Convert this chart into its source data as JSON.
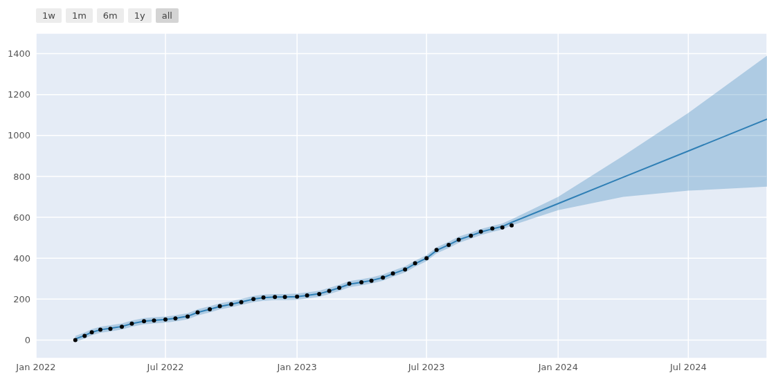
{
  "chart_data": {
    "type": "line",
    "annotations": [
      "1w",
      "1m",
      "6m",
      "1y",
      "all"
    ],
    "xlim": [
      "2022-01-01",
      "2024-10-19"
    ],
    "xticks": [
      {
        "value": "2022-01-01",
        "label": "Jan 2022"
      },
      {
        "value": "2022-07-01",
        "label": "Jul 2022"
      },
      {
        "value": "2023-01-01",
        "label": "Jan 2023"
      },
      {
        "value": "2023-07-01",
        "label": "Jul 2023"
      },
      {
        "value": "2024-01-01",
        "label": "Jan 2024"
      },
      {
        "value": "2024-07-01",
        "label": "Jul 2024"
      }
    ],
    "ylim": [
      -90,
      1500
    ],
    "yticks": [
      0,
      200,
      400,
      600,
      800,
      1000,
      1200,
      1400
    ],
    "grid": true,
    "series": [
      {
        "color": "#2f7fb5",
        "x": [
          "2022-02-25",
          "2022-03-10",
          "2022-03-20",
          "2022-04-01",
          "2022-04-15",
          "2022-05-01",
          "2022-05-15",
          "2022-06-01",
          "2022-06-15",
          "2022-07-01",
          "2022-07-15",
          "2022-08-01",
          "2022-08-15",
          "2022-09-01",
          "2022-09-15",
          "2022-10-01",
          "2022-10-15",
          "2022-11-01",
          "2022-11-15",
          "2022-12-01",
          "2022-12-15",
          "2023-01-01",
          "2023-01-15",
          "2023-02-01",
          "2023-02-15",
          "2023-03-01",
          "2023-03-15",
          "2023-04-01",
          "2023-04-15",
          "2023-05-01",
          "2023-05-15",
          "2023-06-01",
          "2023-06-15",
          "2023-07-01",
          "2023-07-15",
          "2023-08-01",
          "2023-08-15",
          "2023-09-01",
          "2023-09-15",
          "2023-10-01",
          "2023-10-15",
          "2023-10-28",
          "2024-01-01",
          "2024-04-01",
          "2024-07-01",
          "2024-10-19"
        ],
        "values": [
          5,
          22,
          38,
          50,
          57,
          66,
          80,
          92,
          96,
          100,
          106,
          116,
          135,
          150,
          164,
          175,
          186,
          200,
          207,
          210,
          210,
          212,
          218,
          226,
          240,
          255,
          273,
          282,
          291,
          305,
          324,
          345,
          373,
          400,
          438,
          465,
          490,
          510,
          528,
          543,
          555,
          575,
          667,
          796,
          924,
          1080
        ],
        "lower": [
          -10,
          7,
          23,
          35,
          42,
          51,
          65,
          77,
          81,
          85,
          91,
          101,
          120,
          135,
          149,
          160,
          171,
          185,
          192,
          195,
          195,
          197,
          203,
          211,
          225,
          240,
          258,
          267,
          276,
          290,
          309,
          330,
          358,
          385,
          423,
          450,
          475,
          495,
          513,
          528,
          540,
          560,
          635,
          700,
          730,
          750
        ],
        "upper": [
          20,
          37,
          53,
          65,
          72,
          81,
          95,
          107,
          111,
          115,
          121,
          131,
          150,
          165,
          179,
          190,
          201,
          215,
          222,
          225,
          225,
          227,
          233,
          241,
          255,
          270,
          288,
          297,
          306,
          320,
          339,
          360,
          388,
          415,
          453,
          480,
          505,
          525,
          543,
          558,
          570,
          590,
          700,
          900,
          1110,
          1390
        ]
      },
      {
        "type": "scatter",
        "color": "#000000",
        "marker": "circle",
        "x": [
          "2022-02-25",
          "2022-03-10",
          "2022-03-20",
          "2022-04-01",
          "2022-04-15",
          "2022-05-01",
          "2022-05-15",
          "2022-06-01",
          "2022-06-15",
          "2022-07-01",
          "2022-07-15",
          "2022-08-01",
          "2022-08-15",
          "2022-09-01",
          "2022-09-15",
          "2022-10-01",
          "2022-10-15",
          "2022-11-01",
          "2022-11-15",
          "2022-12-01",
          "2022-12-15",
          "2023-01-01",
          "2023-01-15",
          "2023-02-01",
          "2023-02-15",
          "2023-03-01",
          "2023-03-15",
          "2023-04-01",
          "2023-04-15",
          "2023-05-01",
          "2023-05-15",
          "2023-06-01",
          "2023-06-15",
          "2023-07-01",
          "2023-07-15",
          "2023-08-01",
          "2023-08-15",
          "2023-09-01",
          "2023-09-15",
          "2023-10-01",
          "2023-10-15",
          "2023-10-28"
        ],
        "values": [
          0,
          20,
          38,
          50,
          55,
          65,
          80,
          92,
          95,
          100,
          105,
          115,
          135,
          150,
          165,
          175,
          185,
          200,
          208,
          210,
          210,
          212,
          218,
          225,
          240,
          255,
          275,
          282,
          290,
          305,
          325,
          345,
          375,
          400,
          440,
          465,
          490,
          510,
          530,
          545,
          550,
          560
        ]
      }
    ]
  }
}
